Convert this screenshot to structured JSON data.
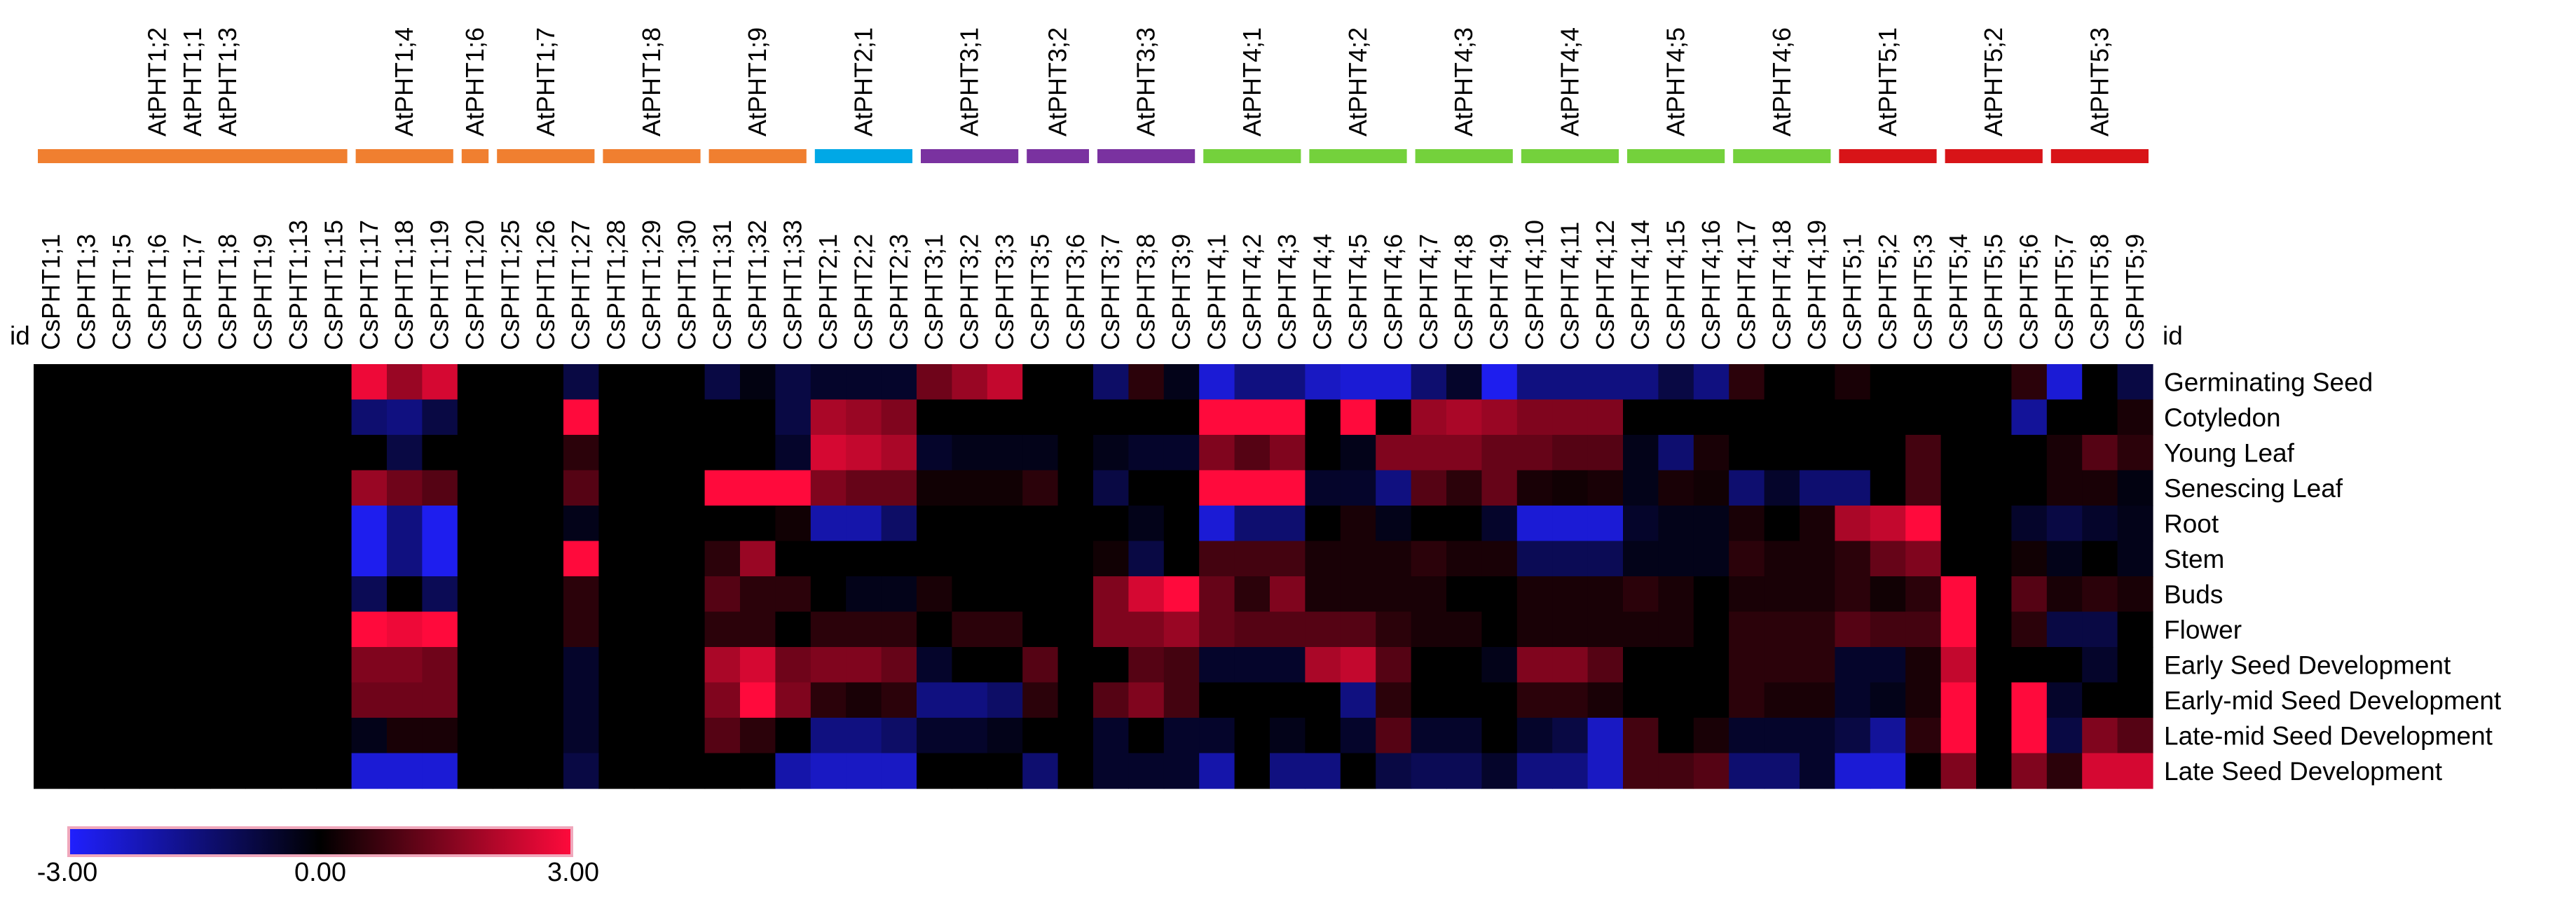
{
  "chart_data": {
    "type": "heatmap",
    "title": "",
    "id_label_left": "id",
    "id_label_right": "id",
    "columns": [
      "CsPHT1;1",
      "CsPHT1;3",
      "CsPHT1;5",
      "CsPHT1;6",
      "CsPHT1;7",
      "CsPHT1;8",
      "CsPHT1;9",
      "CsPHT1;13",
      "CsPHT1;15",
      "CsPHT1;17",
      "CsPHT1;18",
      "CsPHT1;19",
      "CsPHT1;20",
      "CsPHT1;25",
      "CsPHT1;26",
      "CsPHT1;27",
      "CsPHT1;28",
      "CsPHT1;29",
      "CsPHT1;30",
      "CsPHT1;31",
      "CsPHT1;32",
      "CsPHT1;33",
      "CsPHT2;1",
      "CsPHT2;2",
      "CsPHT2;3",
      "CsPHT3;1",
      "CsPHT3;2",
      "CsPHT3;3",
      "CsPHT3;5",
      "CsPHT3;6",
      "CsPHT3;7",
      "CsPHT3;8",
      "CsPHT3;9",
      "CsPHT4;1",
      "CsPHT4;2",
      "CsPHT4;3",
      "CsPHT4;4",
      "CsPHT4;5",
      "CsPHT4;6",
      "CsPHT4;7",
      "CsPHT4;8",
      "CsPHT4;9",
      "CsPHT4;10",
      "CsPHT4;11",
      "CsPHT4;12",
      "CsPHT4;14",
      "CsPHT4;15",
      "CsPHT4;16",
      "CsPHT4;17",
      "CsPHT4;18",
      "CsPHT4;19",
      "CsPHT5;1",
      "CsPHT5;2",
      "CsPHT5;3",
      "CsPHT5;4",
      "CsPHT5;5",
      "CsPHT5;6",
      "CsPHT5;7",
      "CsPHT5;8",
      "CsPHT5;9"
    ],
    "rows": [
      "Germinating Seed",
      "Cotyledon",
      "Young Leaf",
      "Senescing Leaf",
      "Root",
      "Stem",
      "Buds",
      "Flower",
      "Early Seed Development",
      "Early-mid Seed Development",
      "Late-mid Seed Development",
      "Late Seed Development"
    ],
    "values": [
      [
        0,
        0,
        0,
        0,
        0,
        0,
        0,
        0,
        0,
        2.8,
        1.8,
        2.5,
        0,
        0,
        0,
        -0.8,
        0,
        0,
        0,
        -0.8,
        -0.2,
        -0.8,
        -0.5,
        -0.5,
        -0.5,
        1.3,
        1.8,
        2.3,
        0,
        0,
        -1.2,
        0.5,
        -0.3,
        -2.5,
        -1.5,
        -1.5,
        -2.3,
        -2.5,
        -2.5,
        -1.3,
        -0.5,
        -2.8,
        -1.5,
        -1.5,
        -1.5,
        -1.5,
        -0.8,
        -1.5,
        0.5,
        0,
        0,
        0.3,
        0,
        0,
        0,
        0,
        0.5,
        -2.5,
        0,
        -0.8
      ],
      [
        0,
        0,
        0,
        0,
        0,
        0,
        0,
        0,
        0,
        -1.3,
        -1.5,
        -0.8,
        0,
        0,
        0,
        3,
        0,
        0,
        0,
        0,
        0,
        -0.8,
        2,
        1.8,
        1.5,
        0,
        0,
        0,
        0,
        0,
        0,
        0,
        0,
        3,
        3,
        3,
        0,
        3,
        0,
        1.8,
        2,
        1.8,
        1.5,
        1.5,
        1.5,
        0,
        0,
        0,
        0,
        0,
        0,
        0,
        0,
        0,
        0,
        0,
        -1.8,
        0,
        0,
        0.3
      ],
      [
        0,
        0,
        0,
        0,
        0,
        0,
        0,
        0,
        0,
        0,
        -0.8,
        0,
        0,
        0,
        0,
        0.5,
        0,
        0,
        0,
        0,
        0,
        -0.5,
        2.5,
        2.3,
        2,
        -0.5,
        -0.3,
        -0.3,
        -0.3,
        0,
        -0.3,
        -0.5,
        -0.5,
        1.5,
        1,
        1.5,
        0,
        -0.3,
        1.5,
        1.5,
        1.5,
        1.2,
        1.2,
        1,
        1,
        -0.3,
        -1.3,
        0.3,
        0,
        0,
        0,
        0,
        0,
        0.8,
        0,
        0,
        0,
        0.3,
        1,
        0.5
      ],
      [
        0,
        0,
        0,
        0,
        0,
        0,
        0,
        0,
        0,
        1.8,
        1.3,
        1,
        0,
        0,
        0,
        1,
        0,
        0,
        0,
        3,
        3,
        3,
        1.5,
        1.2,
        1.2,
        0.2,
        0.2,
        0.2,
        0.5,
        0,
        -0.8,
        0,
        0,
        3,
        3,
        3,
        -0.5,
        -0.5,
        -1.5,
        1,
        0.5,
        1.2,
        0.3,
        0.2,
        0.3,
        -0.3,
        0.3,
        0.2,
        -1.3,
        -0.5,
        -1.3,
        -1.3,
        0,
        0.8,
        0,
        0,
        0,
        0.3,
        0.3,
        -0.2
      ],
      [
        0,
        0,
        0,
        0,
        0,
        0,
        0,
        0,
        0,
        -2.8,
        -1.5,
        -2.8,
        0,
        0,
        0,
        -0.3,
        0,
        0,
        0,
        0,
        0,
        0.2,
        -2,
        -2,
        -1.2,
        0,
        0,
        0,
        0,
        0,
        0,
        -0.3,
        0,
        -2.5,
        -1.3,
        -1.3,
        0,
        0.3,
        -0.3,
        0,
        0,
        -0.5,
        -2.5,
        -2.5,
        -2.5,
        -0.5,
        -0.3,
        -0.3,
        0.3,
        0,
        0.3,
        2,
        2.3,
        3,
        0,
        0,
        -0.5,
        -0.8,
        -0.5,
        -0.3
      ],
      [
        0,
        0,
        0,
        0,
        0,
        0,
        0,
        0,
        0,
        -2.8,
        -1.5,
        -2.8,
        0,
        0,
        0,
        3,
        0,
        0,
        0,
        0.5,
        1.8,
        0,
        0,
        0,
        0,
        0,
        0,
        0,
        0,
        0,
        0.2,
        -0.8,
        0,
        0.8,
        0.8,
        0.8,
        0.3,
        0.3,
        0.3,
        0.5,
        0.3,
        0.3,
        -1,
        -1,
        -1,
        -0.3,
        -0.3,
        -0.3,
        0.5,
        0.3,
        0.3,
        0.5,
        1.2,
        1.5,
        0,
        0,
        0.2,
        -0.3,
        0,
        -0.3
      ],
      [
        0,
        0,
        0,
        0,
        0,
        0,
        0,
        0,
        0,
        -1,
        0,
        -1,
        0,
        0,
        0,
        0.5,
        0,
        0,
        0,
        1,
        0.5,
        0.5,
        0,
        -0.3,
        -0.3,
        0.3,
        0,
        0,
        0,
        0,
        1.5,
        2.5,
        3,
        1.2,
        0.5,
        1.5,
        0.3,
        0.3,
        0.3,
        0.3,
        0,
        0,
        0.3,
        0.3,
        0.3,
        0.5,
        0.3,
        0,
        0.3,
        0.3,
        0.3,
        0.5,
        0.2,
        0.5,
        3,
        0,
        1,
        0.3,
        0.5,
        0.3
      ],
      [
        0,
        0,
        0,
        0,
        0,
        0,
        0,
        0,
        0,
        3,
        2.8,
        3,
        0,
        0,
        0,
        0.5,
        0,
        0,
        0,
        0.5,
        0.5,
        0,
        0.5,
        0.5,
        0.5,
        0,
        0.5,
        0.5,
        0,
        0,
        1.5,
        1.5,
        1.8,
        1.2,
        1,
        1,
        1,
        1,
        0.5,
        0.3,
        0.3,
        0,
        0.3,
        0.3,
        0.3,
        0.3,
        0.3,
        0,
        0.5,
        0.5,
        0.5,
        1,
        0.8,
        0.8,
        3,
        0,
        0.5,
        -0.8,
        -0.8,
        0
      ],
      [
        0,
        0,
        0,
        0,
        0,
        0,
        0,
        0,
        0,
        1.5,
        1.5,
        1.3,
        0,
        0,
        0,
        -0.5,
        0,
        0,
        0,
        2,
        2.5,
        1.3,
        1.5,
        1.5,
        1.2,
        -0.5,
        0,
        0,
        1,
        0,
        0,
        1,
        0.8,
        -0.5,
        -0.5,
        -0.5,
        2,
        2.3,
        1,
        0,
        0,
        -0.3,
        1.5,
        1.5,
        1,
        0,
        0,
        0,
        0.5,
        0.5,
        0.5,
        -0.5,
        -0.5,
        0.3,
        2.3,
        0,
        0,
        0,
        -0.5,
        0
      ],
      [
        0,
        0,
        0,
        0,
        0,
        0,
        0,
        0,
        0,
        1.3,
        1.3,
        1.3,
        0,
        0,
        0,
        -0.5,
        0,
        0,
        0,
        1.5,
        3,
        1.5,
        0.5,
        0.3,
        0.5,
        -1.5,
        -1.5,
        -1.2,
        0.5,
        0,
        1,
        1.5,
        0.8,
        0,
        0,
        0,
        0,
        -1.5,
        0.5,
        0,
        0,
        0,
        0.5,
        0.5,
        0.3,
        0,
        0,
        0,
        0.5,
        0.3,
        0.3,
        -0.5,
        -0.3,
        0.3,
        3,
        0,
        3,
        -0.5,
        0,
        0
      ],
      [
        0,
        0,
        0,
        0,
        0,
        0,
        0,
        0,
        0,
        -0.3,
        0.3,
        0.3,
        0,
        0,
        0,
        -0.5,
        0,
        0,
        0,
        1,
        0.5,
        0,
        -1.5,
        -1.5,
        -1.2,
        -0.5,
        -0.5,
        -0.3,
        0,
        0,
        -0.5,
        0,
        -0.5,
        -0.5,
        0,
        -0.3,
        0,
        -0.5,
        1,
        -0.5,
        -0.5,
        0,
        -0.5,
        -0.8,
        -2.3,
        0.8,
        0,
        0.3,
        -0.5,
        -0.5,
        -0.5,
        -0.8,
        -1.8,
        0.5,
        3,
        0,
        3,
        -0.8,
        1.5,
        1
      ],
      [
        0,
        0,
        0,
        0,
        0,
        0,
        0,
        0,
        0,
        -2.5,
        -2.5,
        -2.5,
        0,
        0,
        0,
        -0.8,
        0,
        0,
        0,
        0,
        0,
        -2,
        -2.3,
        -2.3,
        -2.3,
        0,
        0,
        0,
        -1.3,
        0,
        -0.5,
        -0.5,
        -0.5,
        -2,
        0,
        -1.5,
        -1.5,
        0,
        -0.8,
        -1,
        -1,
        -0.5,
        -1.5,
        -1.5,
        -2.3,
        0.8,
        0.8,
        1,
        -1.3,
        -1.3,
        -0.5,
        -2.5,
        -2.5,
        0,
        1.5,
        0,
        1.5,
        0.5,
        2.5,
        2.5
      ]
    ],
    "groups": [
      {
        "label": "AtPHT1;1",
        "color": "#f07f30",
        "bar_from": "CsPHT1;1",
        "bar_to": "CsPHT1;15"
      },
      {
        "label": "AtPHT1;4",
        "color": "#f07f30",
        "bar_from": "CsPHT1;17",
        "bar_to": "CsPHT1;19"
      },
      {
        "label": "AtPHT1;6",
        "color": "#f07f30",
        "bar_from": "CsPHT1;20",
        "bar_to": "CsPHT1;20"
      },
      {
        "label": "AtPHT1;7",
        "color": "#f07f30",
        "bar_from": "CsPHT1;25",
        "bar_to": "CsPHT1;27"
      },
      {
        "label": "AtPHT1;8",
        "color": "#f07f30",
        "bar_from": "CsPHT1;28",
        "bar_to": "CsPHT1;30"
      },
      {
        "label": "AtPHT1;9",
        "color": "#f07f30",
        "bar_from": "CsPHT1;31",
        "bar_to": "CsPHT1;33"
      },
      {
        "label": "AtPHT2;1",
        "color": "#00a8e6",
        "bar_from": "CsPHT2;1",
        "bar_to": "CsPHT2;3"
      },
      {
        "label": "AtPHT3;1",
        "color": "#7a32a0",
        "bar_from": "CsPHT3;1",
        "bar_to": "CsPHT3;3"
      },
      {
        "label": "AtPHT3;2",
        "color": "#7a32a0",
        "bar_from": "CsPHT3;5",
        "bar_to": "CsPHT3;6"
      },
      {
        "label": "AtPHT3;3",
        "color": "#7a32a0",
        "bar_from": "CsPHT3;7",
        "bar_to": "CsPHT3;9"
      },
      {
        "label": "AtPHT4;1",
        "color": "#74d13c",
        "bar_from": "CsPHT4;1",
        "bar_to": "CsPHT4;3"
      },
      {
        "label": "AtPHT4;2",
        "color": "#74d13c",
        "bar_from": "CsPHT4;4",
        "bar_to": "CsPHT4;6"
      },
      {
        "label": "AtPHT4;3",
        "color": "#74d13c",
        "bar_from": "CsPHT4;7",
        "bar_to": "CsPHT4;9"
      },
      {
        "label": "AtPHT4;4",
        "color": "#74d13c",
        "bar_from": "CsPHT4;10",
        "bar_to": "CsPHT4;12"
      },
      {
        "label": "AtPHT4;5",
        "color": "#74d13c",
        "bar_from": "CsPHT4;14",
        "bar_to": "CsPHT4;16"
      },
      {
        "label": "AtPHT4;6",
        "color": "#74d13c",
        "bar_from": "CsPHT4;17",
        "bar_to": "CsPHT4;19"
      },
      {
        "label": "AtPHT5;1",
        "color": "#d81418",
        "bar_from": "CsPHT5;1",
        "bar_to": "CsPHT5;3"
      },
      {
        "label": "AtPHT5;2",
        "color": "#d81418",
        "bar_from": "CsPHT5;4",
        "bar_to": "CsPHT5;6"
      },
      {
        "label": "AtPHT5;3",
        "color": "#d81418",
        "bar_from": "CsPHT5;7",
        "bar_to": "CsPHT5;9"
      }
    ],
    "extra_group_labels": [
      {
        "label": "AtPHT1;2",
        "column": "CsPHT1;6"
      },
      {
        "label": "AtPHT1;3",
        "column": "CsPHT1;8"
      }
    ],
    "colorscale": {
      "min": -3.0,
      "mid": 0.0,
      "max": 3.0,
      "min_label": "-3.00",
      "mid_label": "0.00",
      "max_label": "3.00",
      "low_color": "#2020ff",
      "mid_color": "#000000",
      "high_color": "#ff0a3c"
    }
  }
}
